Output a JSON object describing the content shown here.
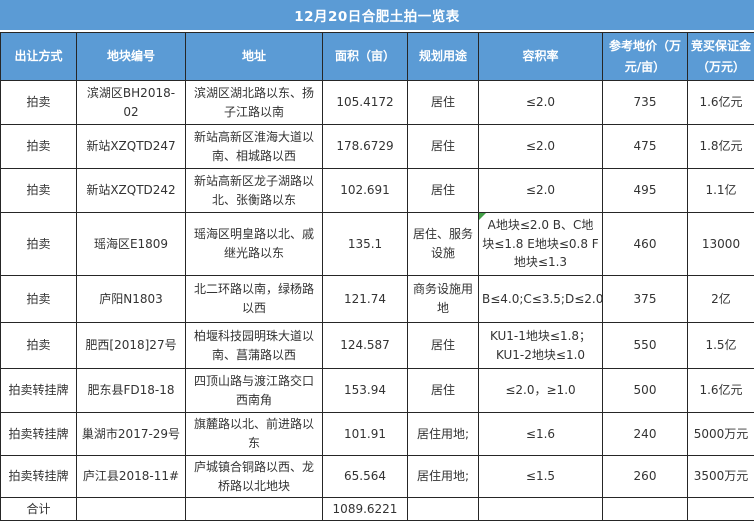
{
  "title": "12月20日合肥土拍一览表",
  "columns": [
    "出让方式",
    "地块编号",
    "地址",
    "面积（亩）",
    "规划用途",
    "容积率",
    "参考地价（万元/亩）",
    "竞买保证金（万元）"
  ],
  "rows": [
    [
      "拍卖",
      "滨湖区BH2018-02",
      "滨湖区湖北路以东、扬子江路以南",
      "105.4172",
      "居住",
      "≤2.0",
      "735",
      "1.6亿元"
    ],
    [
      "拍卖",
      "新站XZQTD247",
      "新站高新区淮海大道以南、相城路以西",
      "178.6729",
      "居住",
      "≤2.0",
      "475",
      "1.8亿元"
    ],
    [
      "拍卖",
      "新站XZQTD242",
      "新站高新区龙子湖路以北、张衡路以东",
      "102.691",
      "居住",
      "≤2.0",
      "495",
      "1.1亿"
    ],
    [
      "拍卖",
      "瑶海区E1809",
      "瑶海区明皇路以北、戚继光路以东",
      "135.1",
      "居住、服务设施",
      "A地块≤2.0 B、C地块≤1.8 E地块≤0.8 F地块≤1.3",
      "460",
      "13000"
    ],
    [
      "拍卖",
      "庐阳N1803",
      "北二环路以南，绿杨路以西",
      "121.74",
      "商务设施用地",
      "B≤4.0;C≤3.5;D≤2.0",
      "375",
      "2亿"
    ],
    [
      "拍卖",
      "肥西[2018]27号",
      "柏堰科技园明珠大道以南、菖蒲路以西",
      "124.587",
      "居住",
      "KU1-1地块≤1.8；KU1-2地块≤1.0",
      "550",
      "1.5亿"
    ],
    [
      "拍卖转挂牌",
      "肥东县FD18-18",
      "四顶山路与渡江路交口西南角",
      "153.94",
      "居住",
      "≤2.0，≥1.0",
      "500",
      "1.6亿元"
    ],
    [
      "拍卖转挂牌",
      "巢湖市2017-29号",
      "旗麓路以北、前进路以东",
      "101.91",
      "居住用地;",
      "≤1.6",
      "240",
      "5000万元"
    ],
    [
      "拍卖转挂牌",
      "庐江县2018-11#",
      "庐城镇合铜路以西、龙桥路以北地块",
      "65.564",
      "居住用地;",
      "≤1.5",
      "260",
      "3500万元"
    ]
  ],
  "footer": {
    "label": "合计",
    "area_total": "1089.6221"
  },
  "flag_cell": {
    "row_index": 3,
    "col_index": 5
  },
  "colors": {
    "header_bg": "#5b9bd5",
    "header_text": "#ffffff",
    "body_text": "#333333",
    "border": "#262626",
    "flag_green": "#43a047"
  }
}
